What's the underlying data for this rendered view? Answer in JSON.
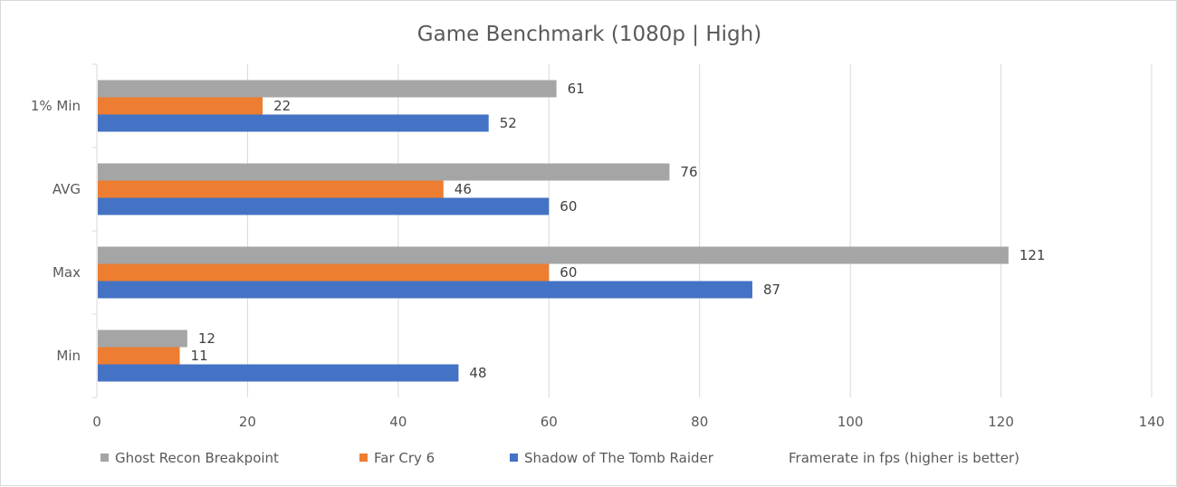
{
  "chart_data": {
    "type": "bar",
    "orientation": "horizontal",
    "title": "Game Benchmark (1080p | High)",
    "categories": [
      "1% Min",
      "AVG",
      "Max",
      "Min"
    ],
    "series": [
      {
        "name": "Ghost Recon Breakpoint",
        "color": "#a5a5a5",
        "values": [
          61,
          76,
          121,
          12
        ]
      },
      {
        "name": "Far Cry 6",
        "color": "#ed7d31",
        "values": [
          22,
          46,
          60,
          11
        ]
      },
      {
        "name": "Shadow of The Tomb Raider",
        "color": "#4472c4",
        "values": [
          52,
          60,
          87,
          48
        ]
      }
    ],
    "xlim": [
      0,
      140
    ],
    "xticks": [
      0,
      20,
      40,
      60,
      80,
      100,
      120,
      140
    ],
    "x_tick_labels": [
      "0",
      "20",
      "40",
      "60",
      "80",
      "100",
      "120",
      "140"
    ],
    "xlabel": "",
    "ylabel": "",
    "grid": "vertical",
    "legend_position": "bottom",
    "axis_note": "Framerate in fps (higher is better)",
    "show_data_labels": true
  }
}
